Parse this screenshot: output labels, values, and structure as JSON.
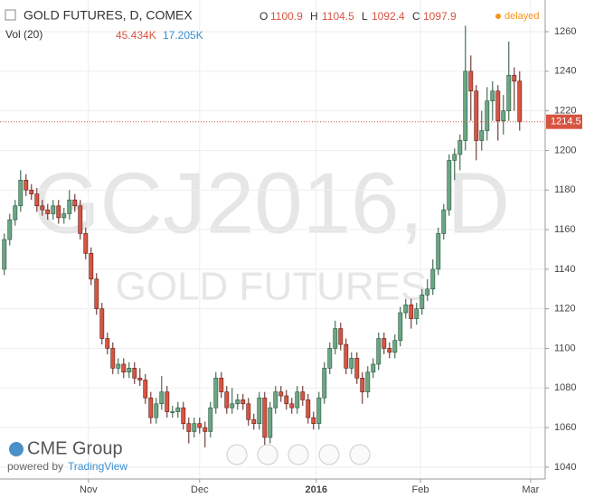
{
  "header": {
    "symbol": "GOLD FUTURES, D, COMEX",
    "o_label": "O",
    "o": "1100.9",
    "h_label": "H",
    "h": "1104.5",
    "l_label": "L",
    "l": "1092.4",
    "c_label": "C",
    "c": "1097.9",
    "status": "delayed",
    "vol_label": "Vol (20)",
    "vol1": "45.434K",
    "vol2": "17.205K"
  },
  "watermark": {
    "line1": "GCJ2016, D",
    "line2": "GOLD FUTURES"
  },
  "branding": {
    "logo": "CME Group",
    "powered": "powered by",
    "tv": "TradingView"
  },
  "chart_data": {
    "type": "candlestick",
    "up_color": "#6ba583",
    "down_color": "#d75442",
    "open": [
      1140,
      1155,
      1165,
      1172,
      1185,
      1180,
      1178,
      1172,
      1170,
      1168,
      1172,
      1166,
      1168,
      1175,
      1172,
      1158,
      1148,
      1135,
      1120,
      1105,
      1100,
      1090,
      1092,
      1088,
      1090,
      1085,
      1084,
      1075,
      1065,
      1072,
      1078,
      1068,
      1068,
      1070,
      1062,
      1058,
      1062,
      1060,
      1058,
      1070,
      1085,
      1078,
      1070,
      1072,
      1074,
      1072,
      1064,
      1062,
      1075,
      1055,
      1070,
      1078,
      1076,
      1072,
      1070,
      1078,
      1074,
      1065,
      1062,
      1075,
      1090,
      1100,
      1110,
      1102,
      1090,
      1095,
      1085,
      1078,
      1088,
      1092,
      1105,
      1100,
      1098,
      1104,
      1118,
      1122,
      1115,
      1120,
      1127,
      1130,
      1140,
      1158,
      1170,
      1195,
      1198,
      1205,
      1240,
      1230,
      1205,
      1210,
      1225,
      1230,
      1215,
      1220,
      1238,
      1235
    ],
    "high": [
      1158,
      1168,
      1175,
      1190,
      1188,
      1183,
      1181,
      1175,
      1173,
      1175,
      1175,
      1171,
      1180,
      1178,
      1175,
      1161,
      1151,
      1138,
      1123,
      1108,
      1103,
      1095,
      1095,
      1093,
      1093,
      1090,
      1087,
      1078,
      1075,
      1086,
      1081,
      1071,
      1073,
      1073,
      1065,
      1065,
      1065,
      1063,
      1073,
      1088,
      1088,
      1081,
      1080,
      1077,
      1077,
      1075,
      1067,
      1078,
      1078,
      1073,
      1081,
      1081,
      1079,
      1075,
      1081,
      1081,
      1077,
      1068,
      1078,
      1093,
      1103,
      1114,
      1113,
      1105,
      1098,
      1098,
      1088,
      1091,
      1095,
      1108,
      1108,
      1103,
      1107,
      1121,
      1125,
      1125,
      1123,
      1130,
      1135,
      1145,
      1161,
      1173,
      1198,
      1201,
      1208,
      1263,
      1248,
      1233,
      1220,
      1232,
      1235,
      1233,
      1228,
      1255,
      1242,
      1240
    ],
    "low": [
      1137,
      1152,
      1162,
      1169,
      1177,
      1175,
      1169,
      1167,
      1165,
      1165,
      1163,
      1163,
      1165,
      1169,
      1155,
      1145,
      1132,
      1117,
      1102,
      1097,
      1087,
      1087,
      1085,
      1085,
      1082,
      1081,
      1072,
      1062,
      1062,
      1069,
      1065,
      1065,
      1065,
      1059,
      1052,
      1055,
      1057,
      1050,
      1055,
      1067,
      1075,
      1067,
      1067,
      1069,
      1069,
      1061,
      1059,
      1059,
      1048,
      1052,
      1067,
      1073,
      1069,
      1067,
      1067,
      1071,
      1062,
      1059,
      1059,
      1072,
      1087,
      1097,
      1099,
      1087,
      1087,
      1082,
      1072,
      1075,
      1085,
      1089,
      1097,
      1095,
      1095,
      1101,
      1115,
      1110,
      1112,
      1117,
      1124,
      1127,
      1137,
      1155,
      1167,
      1185,
      1190,
      1200,
      1215,
      1195,
      1200,
      1205,
      1215,
      1205,
      1208,
      1215,
      1220,
      1210
    ],
    "close": [
      1155,
      1165,
      1172,
      1185,
      1180,
      1178,
      1172,
      1170,
      1168,
      1172,
      1166,
      1168,
      1175,
      1172,
      1158,
      1148,
      1135,
      1120,
      1105,
      1100,
      1090,
      1092,
      1088,
      1090,
      1085,
      1084,
      1075,
      1065,
      1072,
      1078,
      1068,
      1068,
      1070,
      1062,
      1058,
      1062,
      1060,
      1058,
      1070,
      1085,
      1078,
      1070,
      1072,
      1074,
      1072,
      1064,
      1062,
      1075,
      1055,
      1070,
      1078,
      1076,
      1072,
      1070,
      1078,
      1074,
      1065,
      1062,
      1075,
      1090,
      1100,
      1110,
      1102,
      1090,
      1095,
      1085,
      1078,
      1088,
      1092,
      1105,
      1100,
      1098,
      1104,
      1118,
      1122,
      1115,
      1120,
      1127,
      1130,
      1140,
      1158,
      1170,
      1195,
      1198,
      1205,
      1240,
      1230,
      1205,
      1210,
      1225,
      1230,
      1215,
      1220,
      1238,
      1235,
      1214.5
    ],
    "last_price": 1214.5,
    "ylim": [
      1034,
      1276
    ],
    "yticks": [
      1040,
      1060,
      1080,
      1100,
      1120,
      1140,
      1160,
      1180,
      1200,
      1220,
      1240,
      1260
    ],
    "xlim": [
      -0.8,
      99.7
    ],
    "xticks": [
      {
        "value": 15.5,
        "label": "Nov"
      },
      {
        "value": 36,
        "label": "Dec"
      },
      {
        "value": 57.5,
        "label": "2016"
      },
      {
        "value": 76.7,
        "label": "Feb"
      },
      {
        "value": 97,
        "label": "Mar"
      }
    ]
  }
}
